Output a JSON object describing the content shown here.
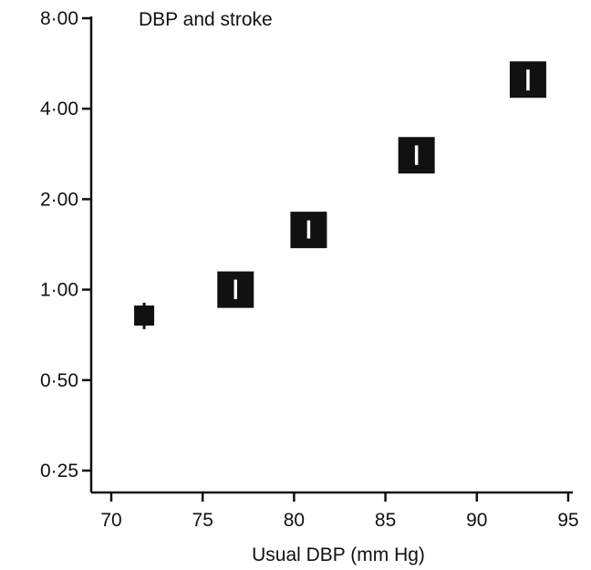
{
  "chart_data": {
    "type": "scatter",
    "title": "DBP and stroke",
    "xlabel": "Usual DBP (mm Hg)",
    "ylabel": "",
    "y_scale": "log2",
    "xlim": [
      69,
      95
    ],
    "ylim": [
      0.22,
      8.6
    ],
    "x_ticks": [
      70,
      75,
      80,
      85,
      90,
      95
    ],
    "x_tick_labels": [
      "70",
      "75",
      "80",
      "85",
      "90",
      "95"
    ],
    "y_ticks": [
      0.25,
      0.5,
      1,
      2,
      4,
      8
    ],
    "y_tick_labels": [
      "0·25",
      "0·50",
      "1·00",
      "2·00",
      "4·00",
      "8·00"
    ],
    "grid": false,
    "marker": "square",
    "marker_color": "#111111",
    "series": [
      {
        "points": [
          {
            "x": 71.8,
            "y": 0.82,
            "lower": 0.76,
            "upper": 0.88
          },
          {
            "x": 76.8,
            "y": 1.0,
            "lower": 0.93,
            "upper": 1.08
          },
          {
            "x": 80.8,
            "y": 1.58,
            "lower": 1.48,
            "upper": 1.7
          },
          {
            "x": 86.7,
            "y": 2.8,
            "lower": 2.6,
            "upper": 3.02
          },
          {
            "x": 92.8,
            "y": 5.0,
            "lower": 4.6,
            "upper": 5.4
          }
        ],
        "marker_weight": [
          2,
          5,
          5,
          5,
          5
        ]
      }
    ]
  }
}
